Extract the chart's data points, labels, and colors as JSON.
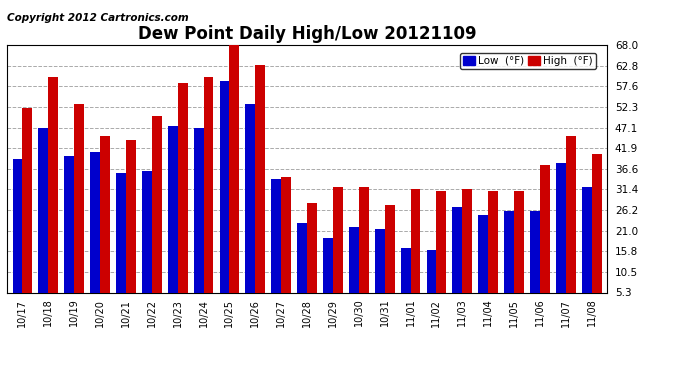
{
  "title": "Dew Point Daily High/Low 20121109",
  "copyright": "Copyright 2012 Cartronics.com",
  "categories": [
    "10/17",
    "10/18",
    "10/19",
    "10/20",
    "10/21",
    "10/22",
    "10/23",
    "10/24",
    "10/25",
    "10/26",
    "10/27",
    "10/28",
    "10/29",
    "10/30",
    "10/31",
    "11/01",
    "11/02",
    "11/03",
    "11/04",
    "11/05",
    "11/06",
    "11/07",
    "11/08"
  ],
  "low_values": [
    39.0,
    47.0,
    40.0,
    41.0,
    35.5,
    36.0,
    47.5,
    47.0,
    59.0,
    53.0,
    34.0,
    23.0,
    19.0,
    22.0,
    21.5,
    16.5,
    16.0,
    27.0,
    25.0,
    26.0,
    26.0,
    38.0,
    32.0
  ],
  "high_values": [
    52.0,
    60.0,
    53.0,
    45.0,
    44.0,
    50.0,
    58.5,
    60.0,
    68.0,
    63.0,
    34.5,
    28.0,
    32.0,
    32.0,
    27.5,
    31.5,
    31.0,
    31.5,
    31.0,
    31.0,
    37.5,
    45.0,
    40.5
  ],
  "low_color": "#0000cc",
  "high_color": "#cc0000",
  "bar_width": 0.38,
  "ylim_min": 5.3,
  "ylim_max": 68.0,
  "yticks": [
    5.3,
    10.5,
    15.8,
    21.0,
    26.2,
    31.4,
    36.6,
    41.9,
    47.1,
    52.3,
    57.6,
    62.8,
    68.0
  ],
  "ytick_labels": [
    "5.3",
    "10.5",
    "15.8",
    "21.0",
    "26.2",
    "31.4",
    "36.6",
    "41.9",
    "47.1",
    "52.3",
    "57.6",
    "62.8",
    "68.0"
  ],
  "grid_color": "#aaaaaa",
  "bg_color": "#ffffff",
  "title_fontsize": 12,
  "copyright_fontsize": 7.5,
  "legend_low_label": "Low  (°F)",
  "legend_high_label": "High  (°F)"
}
